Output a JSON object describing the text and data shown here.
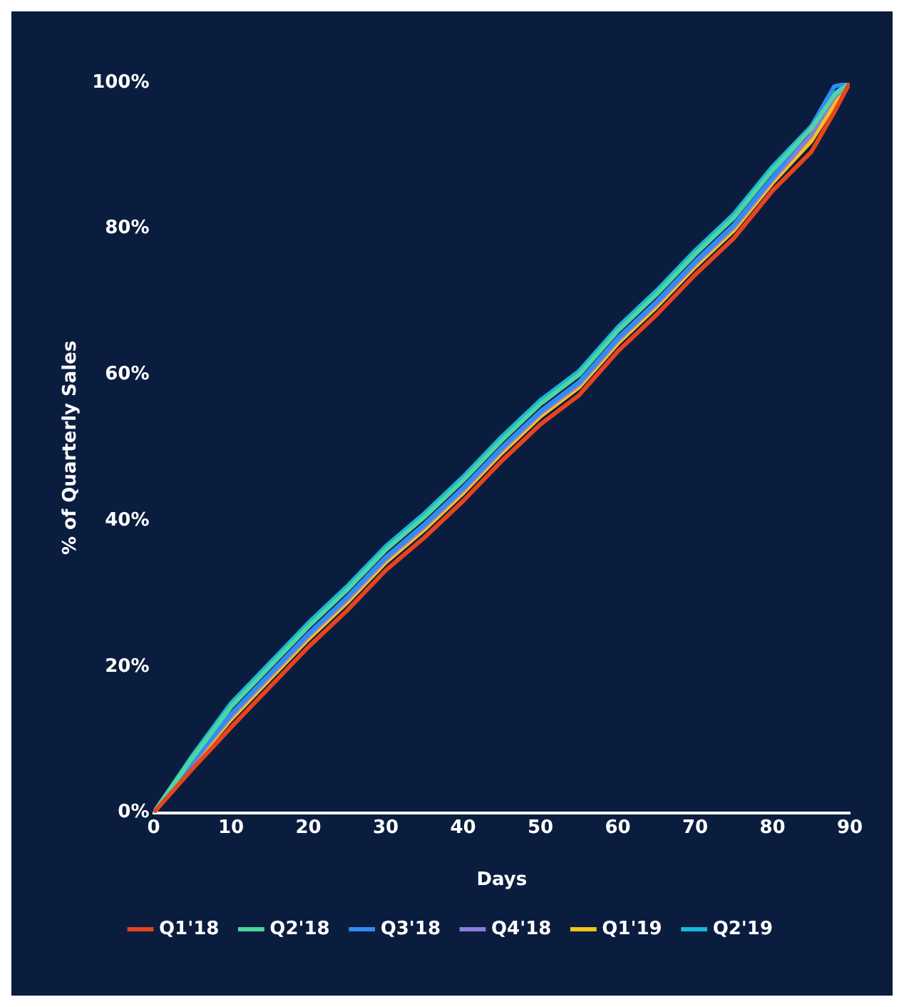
{
  "chart_data": {
    "type": "line",
    "xlabel": "Days",
    "ylabel": "% of Quarterly Sales",
    "x": [
      0,
      5,
      10,
      15,
      20,
      25,
      30,
      35,
      40,
      45,
      50,
      55,
      60,
      65,
      70,
      75,
      80,
      85,
      88,
      90
    ],
    "xlim": [
      0,
      90
    ],
    "xticks": [
      0,
      10,
      20,
      30,
      40,
      50,
      60,
      70,
      80,
      90
    ],
    "ylim": [
      0,
      100
    ],
    "yticks": [
      {
        "value": 0,
        "label": "0%"
      },
      {
        "value": 20,
        "label": "20%"
      },
      {
        "value": 40,
        "label": "40%"
      },
      {
        "value": 60,
        "label": "60%"
      },
      {
        "value": 80,
        "label": "80%"
      },
      {
        "value": 100,
        "label": "100%"
      }
    ],
    "grid": false,
    "legend": "bottom",
    "marker": "none",
    "line_style": "solid",
    "series": [
      {
        "name": "Q1'18",
        "color": "#e8431f",
        "values": [
          0,
          6,
          11.7,
          17.2,
          22.7,
          27.7,
          33.2,
          37.7,
          42.7,
          48.2,
          53.2,
          57.2,
          63.2,
          68.2,
          73.7,
          78.7,
          85.2,
          90.5,
          96,
          100
        ]
      },
      {
        "name": "Q2'18",
        "color": "#4fd6a0",
        "values": [
          0,
          7.5,
          14.5,
          20,
          25.5,
          30.5,
          36,
          40.5,
          45.5,
          51,
          56,
          60,
          66,
          71,
          76.5,
          81.5,
          88,
          93.7,
          98.3,
          100
        ]
      },
      {
        "name": "Q3'18",
        "color": "#2f8cf5",
        "values": [
          0,
          7,
          13.5,
          19,
          24.5,
          29.5,
          35,
          39.5,
          44.5,
          50,
          55,
          59,
          65,
          70,
          75.5,
          80.5,
          87,
          94,
          99.5,
          100
        ]
      },
      {
        "name": "Q4'18",
        "color": "#8c7ed8",
        "values": [
          0,
          6.8,
          13.2,
          18.7,
          24.2,
          29.2,
          34.7,
          39.2,
          44.2,
          49.7,
          54.7,
          58.7,
          64.7,
          69.7,
          75.2,
          80.2,
          86.7,
          92.8,
          98,
          100
        ]
      },
      {
        "name": "Q1'19",
        "color": "#f5c518",
        "values": [
          0,
          6.6,
          12.8,
          18.3,
          23.8,
          28.8,
          34.3,
          38.8,
          43.8,
          49.3,
          54.3,
          58.3,
          64.3,
          69.3,
          74.8,
          79.8,
          86.3,
          92,
          97,
          100
        ]
      },
      {
        "name": "Q2'19",
        "color": "#19b8d6",
        "values": [
          0,
          7.8,
          15,
          20.5,
          26,
          31,
          36.5,
          41,
          46,
          51.5,
          56.5,
          60.5,
          66.5,
          71.5,
          77,
          82,
          88.5,
          94,
          98.5,
          100
        ]
      }
    ]
  }
}
